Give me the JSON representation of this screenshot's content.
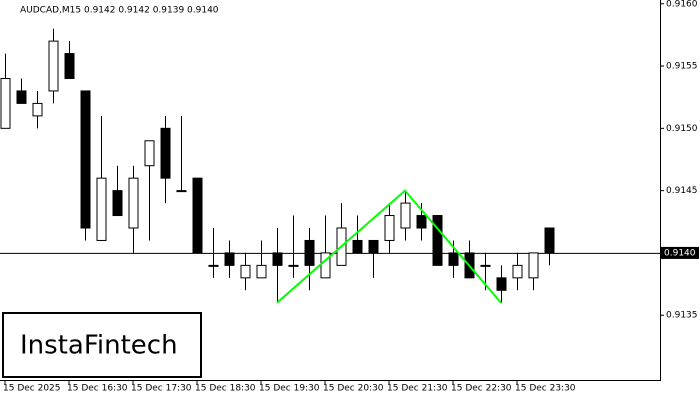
{
  "chart_data": {
    "type": "candlestick",
    "title": "AUDCAD,M15  0.9142 0.9142 0.9139 0.9140",
    "watermark": "InstaFintech",
    "categories": [
      "15 Dec 2025",
      null,
      null,
      null,
      "15 Dec 16:30",
      null,
      null,
      null,
      "15 Dec 17:30",
      null,
      null,
      null,
      "15 Dec 18:30",
      null,
      null,
      null,
      "15 Dec 19:30",
      null,
      null,
      null,
      "15 Dec 20:30",
      null,
      null,
      null,
      "15 Dec 21:30",
      null,
      null,
      null,
      "15 Dec 22:30",
      null,
      null,
      null,
      "15 Dec 23:30",
      null,
      null
    ],
    "open": [
      0.915,
      0.9153,
      0.9151,
      0.9153,
      0.9156,
      0.9153,
      0.9141,
      0.9145,
      0.9142,
      0.9147,
      0.915,
      0.9145,
      0.9146,
      0.9139,
      0.914,
      0.9138,
      0.9138,
      0.914,
      0.9139,
      0.9141,
      0.9138,
      0.9139,
      0.9141,
      0.9141,
      0.9141,
      0.9142,
      0.9143,
      0.9143,
      0.914,
      0.914,
      0.9139,
      0.9138,
      0.9138,
      0.9138,
      0.9142
    ],
    "high": [
      0.9156,
      0.9154,
      0.9153,
      0.9158,
      0.9157,
      0.9153,
      0.9151,
      0.9147,
      0.9147,
      0.9149,
      0.9151,
      0.9151,
      0.9146,
      0.9142,
      0.9141,
      0.914,
      0.9141,
      0.9142,
      0.9143,
      0.9142,
      0.9143,
      0.9144,
      0.9143,
      0.9141,
      0.9144,
      0.9145,
      0.9144,
      0.9143,
      0.9141,
      0.9141,
      0.914,
      0.9139,
      0.914,
      0.914,
      0.9142
    ],
    "low": [
      0.915,
      0.9152,
      0.915,
      0.9152,
      0.9154,
      0.9141,
      0.9141,
      0.9143,
      0.914,
      0.9141,
      0.9144,
      0.9145,
      0.914,
      0.9138,
      0.9138,
      0.9137,
      0.9138,
      0.9136,
      0.9138,
      0.9137,
      0.9138,
      0.9139,
      0.914,
      0.9138,
      0.914,
      0.9141,
      0.9141,
      0.9139,
      0.9138,
      0.9138,
      0.9137,
      0.9136,
      0.9137,
      0.9137,
      0.9139
    ],
    "close": [
      0.9154,
      0.9152,
      0.9152,
      0.9157,
      0.9154,
      0.9142,
      0.9146,
      0.9143,
      0.9146,
      0.9149,
      0.9146,
      0.9145,
      0.914,
      0.9139,
      0.9139,
      0.9139,
      0.9139,
      0.9139,
      0.9139,
      0.9139,
      0.914,
      0.9142,
      0.914,
      0.914,
      0.9143,
      0.9144,
      0.9142,
      0.9139,
      0.9139,
      0.9138,
      0.9139,
      0.9137,
      0.9139,
      0.914,
      0.914
    ],
    "bull_color": "#ffffff",
    "bear_color": "#000000",
    "ylim": [
      0.91298,
      0.91603
    ],
    "yticks": [
      {
        "value": 0.916,
        "label": "0.9160"
      },
      0.9155,
      {
        "value": 0.915,
        "label": "0.9150"
      },
      0.9145,
      0.9135
    ],
    "last_price": {
      "value": 0.914,
      "label": "0.9140"
    },
    "pattern": {
      "color": "#00ff00",
      "x": [
        17,
        25,
        31
      ],
      "values": [
        0.9136,
        0.9145,
        0.9136
      ]
    }
  }
}
